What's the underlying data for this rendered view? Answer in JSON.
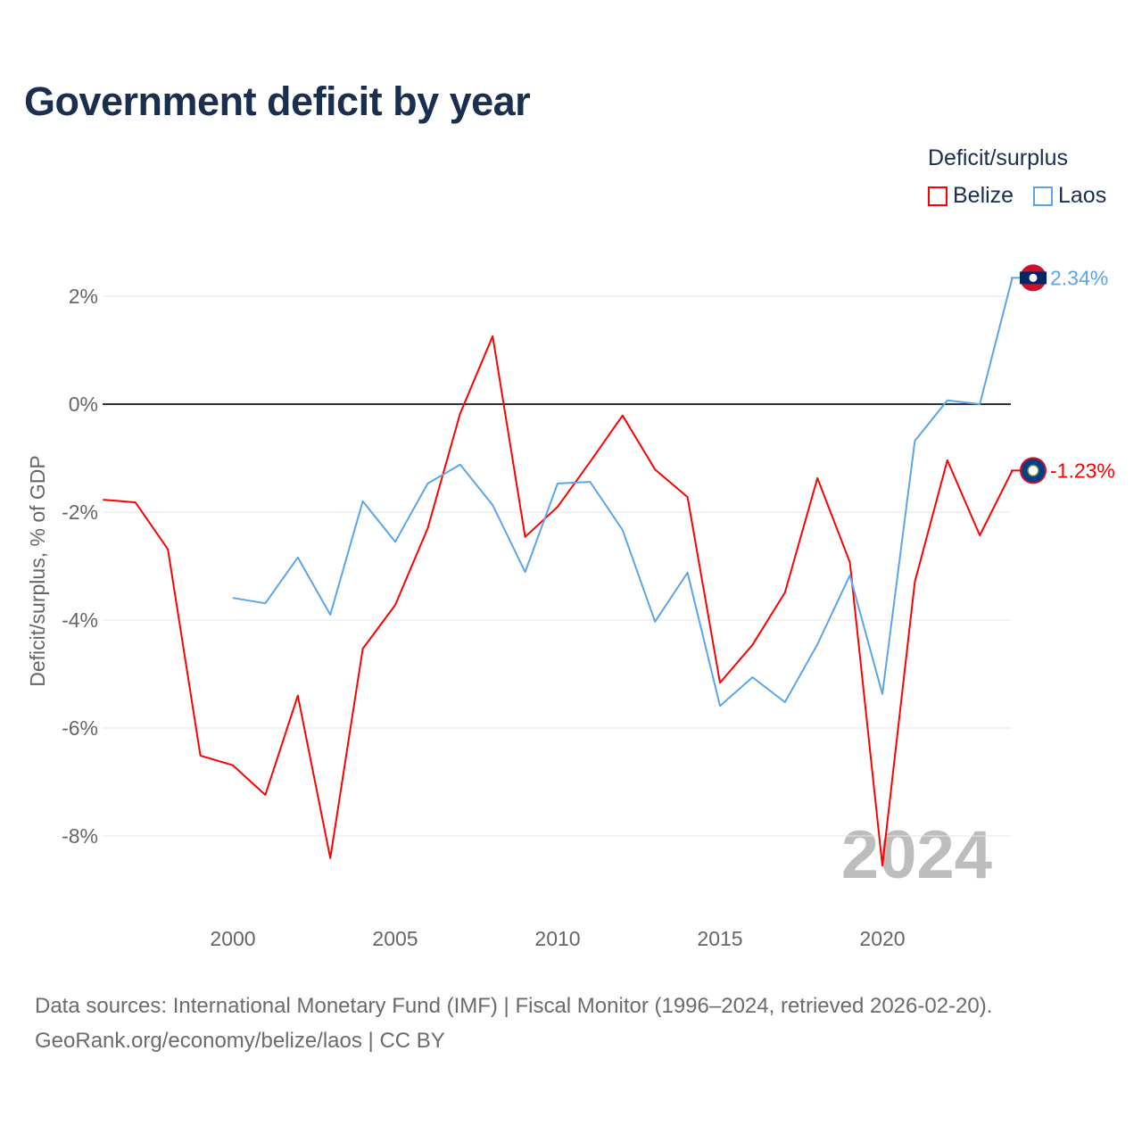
{
  "title": "Government deficit by year",
  "legend": {
    "title": "Deficit/surplus",
    "items": [
      {
        "label": "Belize",
        "color": "#ff0000"
      },
      {
        "label": "Laos",
        "color": "#5aa5ea"
      }
    ]
  },
  "source_line1": "Data sources: International Monetary Fund (IMF) | Fiscal Monitor (1996–2024, retrieved 2026-02-20).",
  "source_line2": "GeoRank.org/economy/belize/laos | CC BY",
  "chart_data": {
    "type": "line",
    "title": "Government deficit by year",
    "xlabel": "",
    "ylabel": "Deficit/surplus, % of GDP",
    "xlim": [
      1996,
      2024
    ],
    "ylim": [
      -9.2,
      3
    ],
    "yticks": [
      2,
      0,
      -2,
      -4,
      -6,
      -8
    ],
    "ytick_labels": [
      "2%",
      "0%",
      "-2%",
      "-4%",
      "-6%",
      "-8%"
    ],
    "xticks": [
      2000,
      2005,
      2010,
      2015,
      2020
    ],
    "xtick_labels": [
      "2000",
      "2005",
      "2010",
      "2015",
      "2020"
    ],
    "year_watermark": "2024",
    "grid": true,
    "legend_position": "top-right",
    "series": [
      {
        "name": "Belize",
        "color": "#ff0000",
        "end_label": "-1.23%",
        "x": [
          1996,
          1997,
          1998,
          1999,
          2000,
          2001,
          2002,
          2003,
          2004,
          2005,
          2006,
          2007,
          2008,
          2009,
          2010,
          2011,
          2012,
          2013,
          2014,
          2015,
          2016,
          2017,
          2018,
          2019,
          2020,
          2021,
          2022,
          2023,
          2024
        ],
        "values": [
          -1.77,
          -1.82,
          -2.69,
          -6.51,
          -6.69,
          -7.24,
          -5.4,
          -8.41,
          -4.53,
          -3.72,
          -2.3,
          -0.17,
          1.26,
          -2.46,
          -1.9,
          -1.07,
          -0.21,
          -1.21,
          -1.72,
          -5.16,
          -4.46,
          -3.49,
          -1.37,
          -2.93,
          -8.55,
          -3.29,
          -1.04,
          -2.43,
          -1.23
        ]
      },
      {
        "name": "Laos",
        "color": "#5aa5ea",
        "end_label": "2.34%",
        "x": [
          2000,
          2001,
          2002,
          2003,
          2004,
          2005,
          2006,
          2007,
          2008,
          2009,
          2010,
          2011,
          2012,
          2013,
          2014,
          2015,
          2016,
          2017,
          2018,
          2019,
          2020,
          2021,
          2022,
          2023,
          2024
        ],
        "values": [
          -3.59,
          -3.69,
          -2.84,
          -3.9,
          -1.8,
          -2.55,
          -1.47,
          -1.12,
          -1.87,
          -3.11,
          -1.47,
          -1.44,
          -2.33,
          -4.03,
          -3.12,
          -5.59,
          -5.06,
          -5.52,
          -4.45,
          -3.17,
          -5.37,
          -0.68,
          0.07,
          0.0,
          2.34
        ]
      }
    ]
  }
}
